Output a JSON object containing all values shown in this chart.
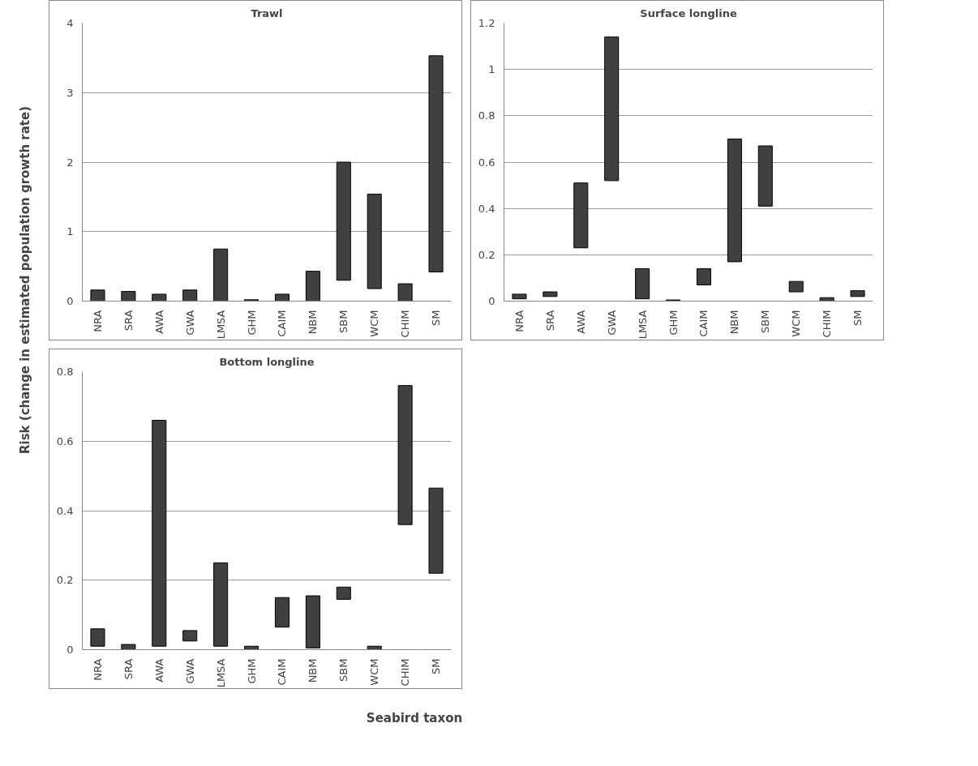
{
  "chart_data": [
    {
      "type": "bar",
      "title": "Trawl",
      "ylabel": "Risk (change in estimated population growth rate)",
      "xlabel": "Seabird taxon",
      "categories": [
        "NRA",
        "SRA",
        "AWA",
        "GWA",
        "LMSA",
        "GHM",
        "CAIM",
        "NBM",
        "SBM",
        "WCM",
        "CHIM",
        "SM"
      ],
      "base": [
        0,
        0,
        0,
        0,
        0,
        0,
        0,
        0,
        0.3,
        0.18,
        0,
        0.42
      ],
      "values": [
        0.16,
        0.14,
        0.1,
        0.16,
        0.75,
        0.02,
        0.1,
        0.43,
        1.7,
        1.36,
        0.25,
        3.11
      ],
      "color": "#404040",
      "ylim": [
        0,
        4
      ],
      "yticks": [
        0,
        1,
        2,
        3,
        4
      ],
      "grid": "y"
    },
    {
      "type": "bar",
      "title": "Surface longline",
      "categories": [
        "NRA",
        "SRA",
        "AWA",
        "GWA",
        "LMSA",
        "GHM",
        "CAIM",
        "NBM",
        "SBM",
        "WCM",
        "CHIM",
        "SM"
      ],
      "base": [
        0.01,
        0.02,
        0.23,
        0.52,
        0.01,
        0,
        0.07,
        0.17,
        0.41,
        0.04,
        0,
        0.02
      ],
      "values": [
        0.02,
        0.02,
        0.28,
        0.62,
        0.13,
        0.005,
        0.07,
        0.53,
        0.26,
        0.045,
        0.015,
        0.025
      ],
      "color": "#404040",
      "ylim": [
        0,
        1.2
      ],
      "yticks": [
        0,
        0.2,
        0.4,
        0.6,
        0.8,
        1,
        1.2
      ],
      "grid": "y"
    },
    {
      "type": "bar",
      "title": "Bottom longline",
      "categories": [
        "NRA",
        "SRA",
        "AWA",
        "GWA",
        "LMSA",
        "GHM",
        "CAIM",
        "NBM",
        "SBM",
        "WCM",
        "CHIM",
        "SM"
      ],
      "base": [
        0.01,
        0,
        0.01,
        0.025,
        0.01,
        0,
        0.065,
        0.005,
        0.145,
        0,
        0.36,
        0.22
      ],
      "values": [
        0.05,
        0.015,
        0.65,
        0.03,
        0.24,
        0.01,
        0.085,
        0.15,
        0.035,
        0.01,
        0.4,
        0.245
      ],
      "color": "#404040",
      "ylim": [
        0,
        0.8
      ],
      "yticks": [
        0,
        0.2,
        0.4,
        0.6,
        0.8
      ],
      "grid": "y"
    }
  ]
}
